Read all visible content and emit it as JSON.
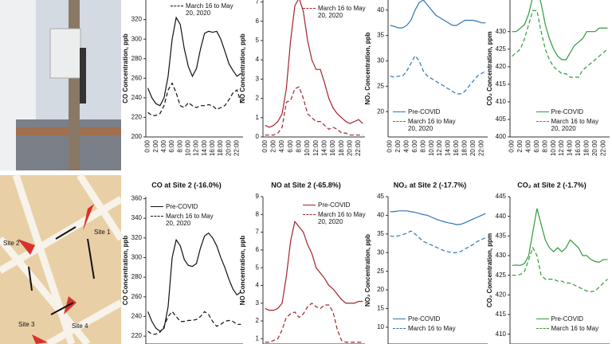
{
  "chart_data": [
    {
      "type": "line",
      "ylabel": "CO Concentration, ppb",
      "ylim": [
        200,
        340
      ],
      "yticks": [
        200,
        220,
        240,
        260,
        280,
        300,
        320
      ],
      "legend": "upper center",
      "categories": [
        "0:00",
        null,
        "2:00",
        null,
        "4:00",
        null,
        "6:00",
        null,
        "8:00",
        null,
        "10:00",
        null,
        "12:00",
        null,
        "14:00",
        null,
        "16:00",
        null,
        "18:00",
        null,
        "20:00",
        null,
        "22:00",
        null
      ],
      "series": [
        {
          "color": "#111111",
          "dash": false,
          "values": [
            250,
            240,
            234,
            232,
            240,
            262,
            300,
            322,
            315,
            290,
            272,
            262,
            270,
            290,
            306,
            308,
            307,
            308,
            300,
            288,
            275,
            268,
            262,
            265
          ]
        },
        {
          "name": "March 16 to May 20, 2020",
          "color": "#111111",
          "dash": true,
          "values": [
            225,
            222,
            222,
            224,
            232,
            248,
            255,
            245,
            232,
            230,
            235,
            232,
            230,
            232,
            232,
            233,
            232,
            228,
            230,
            232,
            238,
            245,
            248,
            235
          ]
        }
      ]
    },
    {
      "type": "line",
      "ylabel": "NO Concentration, ppb",
      "ylim": [
        0,
        7.1
      ],
      "yticks": [
        0,
        1,
        2,
        3,
        4,
        5,
        6,
        7
      ],
      "legend": "upper right",
      "categories": [
        "0:00",
        null,
        "2:00",
        null,
        "4:00",
        null,
        "6:00",
        null,
        "8:00",
        null,
        "10:00",
        null,
        "12:00",
        null,
        "14:00",
        null,
        "16:00",
        null,
        "18:00",
        null,
        "20:00",
        null,
        "22:00",
        null
      ],
      "series": [
        {
          "color": "#a3242a",
          "dash": false,
          "values": [
            0.6,
            0.5,
            0.6,
            0.8,
            1.2,
            2.5,
            5,
            6.8,
            7.2,
            6.5,
            5,
            4,
            3.5,
            3.5,
            2.8,
            2,
            1.5,
            1.2,
            1,
            0.8,
            0.7,
            0.8,
            0.9,
            0.7
          ]
        },
        {
          "name": "March 16 to May 20, 2020",
          "color": "#a3242a",
          "dash": true,
          "values": [
            0.1,
            0.1,
            0.1,
            0.2,
            0.5,
            1.8,
            1.9,
            2.5,
            2.6,
            2,
            1.2,
            1,
            0.8,
            0.8,
            0.6,
            0.4,
            0.5,
            0.4,
            0.2,
            0.2,
            0.1,
            0.1,
            0.1,
            0.1
          ]
        }
      ]
    },
    {
      "type": "line",
      "ylabel": "NO₂ Concentration, ppb",
      "ylim": [
        15,
        42
      ],
      "yticks": [
        20,
        25,
        30,
        35,
        40
      ],
      "legend": "lower left",
      "categories": [
        "0:00",
        null,
        "2:00",
        null,
        "4:00",
        null,
        "6:00",
        null,
        "8:00",
        null,
        "10:00",
        null,
        "12:00",
        null,
        "14:00",
        null,
        "16:00",
        null,
        "18:00",
        null,
        "20:00",
        null,
        "22:00",
        null
      ],
      "series": [
        {
          "name": "Pre-COVID",
          "color": "#2e75b6",
          "dash": false,
          "values": [
            37,
            36.8,
            36.5,
            36.5,
            37,
            38,
            40,
            41.5,
            42,
            41,
            40,
            39,
            38.5,
            38,
            37.5,
            37,
            37,
            37.5,
            38,
            38,
            38,
            37.8,
            37.5,
            37.5
          ]
        },
        {
          "name": "March 16 to May 20, 2020",
          "color": "#2e75b6",
          "dash": true,
          "values": [
            27,
            26.8,
            27,
            27,
            28,
            29.5,
            31,
            30,
            28,
            27,
            26.5,
            26,
            25.5,
            25,
            24.5,
            24,
            23.5,
            23.5,
            24,
            25,
            26,
            27,
            27.5,
            28
          ]
        }
      ]
    },
    {
      "type": "line",
      "ylabel": "CO₂ Concentration, ppm",
      "ylim": [
        400,
        439
      ],
      "yticks": [
        400,
        405,
        410,
        415,
        420,
        425,
        430
      ],
      "legend": "lower center",
      "categories": [
        "0:00",
        null,
        "2:00",
        null,
        "4:00",
        null,
        "6:00",
        null,
        "8:00",
        null,
        "10:00",
        null,
        "12:00",
        null,
        "14:00",
        null,
        "16:00",
        null,
        "18:00",
        null,
        "20:00",
        null,
        "22:00",
        null
      ],
      "series": [
        {
          "name": "Pre-COVID",
          "color": "#2f9a3c",
          "dash": false,
          "values": [
            430,
            430,
            431,
            432,
            435,
            440,
            442,
            438,
            432,
            428,
            425,
            423,
            422,
            422,
            424,
            426,
            427,
            428,
            430,
            430,
            430,
            431,
            431,
            431
          ]
        },
        {
          "name": "March 16 to May 20, 2020",
          "color": "#2f9a3c",
          "dash": true,
          "values": [
            423,
            424,
            425,
            428,
            432,
            436,
            436,
            430,
            425,
            422,
            420,
            419,
            418,
            418,
            417,
            417,
            417,
            419,
            420,
            421,
            422,
            423,
            424,
            425
          ]
        }
      ]
    },
    {
      "type": "line",
      "title": "CO at Site 2 (-16.0%)",
      "ylabel": "CO Concentration, ppb",
      "ylim": [
        212,
        362
      ],
      "yticks": [
        220,
        240,
        260,
        280,
        300,
        320,
        340,
        360
      ],
      "legend": "upper left",
      "series": [
        {
          "name": "Pre-COVID",
          "color": "#111111",
          "dash": false,
          "values": [
            245,
            235,
            228,
            225,
            228,
            250,
            300,
            318,
            312,
            298,
            292,
            291,
            294,
            310,
            322,
            325,
            320,
            312,
            300,
            290,
            278,
            268,
            262,
            265
          ]
        },
        {
          "name": "March 16 to May 20, 2020",
          "color": "#111111",
          "dash": true,
          "values": [
            225,
            222,
            222,
            224,
            230,
            240,
            245,
            240,
            235,
            235,
            236,
            236,
            237,
            240,
            245,
            242,
            235,
            230,
            232,
            235,
            236,
            235,
            232,
            232
          ]
        }
      ]
    },
    {
      "type": "line",
      "title": "NO at Site 2 (-65.8%)",
      "ylabel": "NO Concentration, ppb",
      "ylim": [
        0.7,
        9
      ],
      "yticks": [
        1,
        2,
        3,
        4,
        5,
        6,
        7,
        8,
        9
      ],
      "legend": "upper right",
      "series": [
        {
          "name": "Pre-COVID",
          "color": "#a3242a",
          "dash": false,
          "values": [
            2.7,
            2.6,
            2.6,
            2.7,
            3,
            4.5,
            6.5,
            7.6,
            7.3,
            7,
            6.3,
            5.8,
            5,
            4.7,
            4.4,
            4,
            3.8,
            3.5,
            3.2,
            3,
            3,
            3,
            3.1,
            3.1
          ]
        },
        {
          "name": "March 16 to May 20, 2020",
          "color": "#a3242a",
          "dash": true,
          "values": [
            0.8,
            0.8,
            0.9,
            1,
            1.5,
            2.2,
            2.4,
            2.5,
            2.2,
            2.4,
            2.8,
            3,
            2.8,
            2.7,
            2.9,
            2.9,
            2.5,
            1.5,
            0.9,
            0.8,
            0.8,
            0.8,
            0.8,
            0.8
          ]
        }
      ]
    },
    {
      "type": "line",
      "title": "NO₂ at Site 2 (-17.7%)",
      "ylabel": "NO₂ Concentration, ppb",
      "ylim": [
        5.5,
        45
      ],
      "yticks": [
        10,
        15,
        20,
        25,
        30,
        35,
        40,
        45
      ],
      "legend": "lower left",
      "series": [
        {
          "name": "Pre-COVID",
          "color": "#2e75b6",
          "dash": false,
          "values": [
            41,
            41,
            41.2,
            41.2,
            41.2,
            41,
            40.8,
            40.5,
            40.2,
            40,
            39.5,
            39,
            38.6,
            38.3,
            38,
            37.8,
            37.5,
            37.6,
            38,
            38.5,
            39,
            39.5,
            40,
            40.5
          ]
        },
        {
          "name": "March 16 to May",
          "color": "#2e75b6",
          "dash": true,
          "values": [
            34.5,
            34.3,
            34.5,
            34.8,
            35.2,
            35.8,
            35,
            34,
            33,
            32.5,
            32,
            31.5,
            31,
            30.5,
            30.2,
            30,
            30,
            30.3,
            31,
            31.5,
            32.2,
            33,
            33.5,
            34
          ]
        }
      ]
    },
    {
      "type": "line",
      "title": "CO₂ at Site 2 (-1.7%)",
      "ylabel": "CO₂ Concentration, ppm",
      "ylim": [
        407.5,
        445
      ],
      "yticks": [
        410,
        415,
        420,
        425,
        430,
        435,
        440,
        445
      ],
      "legend": "lower center",
      "series": [
        {
          "name": "Pre-COVID",
          "color": "#2f9a3c",
          "dash": false,
          "values": [
            427.5,
            427.6,
            427.5,
            428,
            430,
            436,
            442,
            438,
            434,
            432,
            431,
            432,
            431,
            432,
            434,
            433,
            432,
            430,
            430,
            429,
            428.5,
            428.3,
            429,
            429
          ]
        },
        {
          "name": "March 16 to May",
          "color": "#2f9a3c",
          "dash": true,
          "values": [
            425,
            425,
            425.2,
            426,
            429,
            432,
            430,
            425,
            424,
            424,
            424,
            423.5,
            423.5,
            423,
            423,
            422.5,
            422,
            421.5,
            421,
            420.8,
            421,
            422,
            423,
            424
          ]
        }
      ]
    }
  ],
  "map": {
    "sites": [
      "Site 1",
      "Site 2",
      "Site 3",
      "Site 4"
    ]
  }
}
